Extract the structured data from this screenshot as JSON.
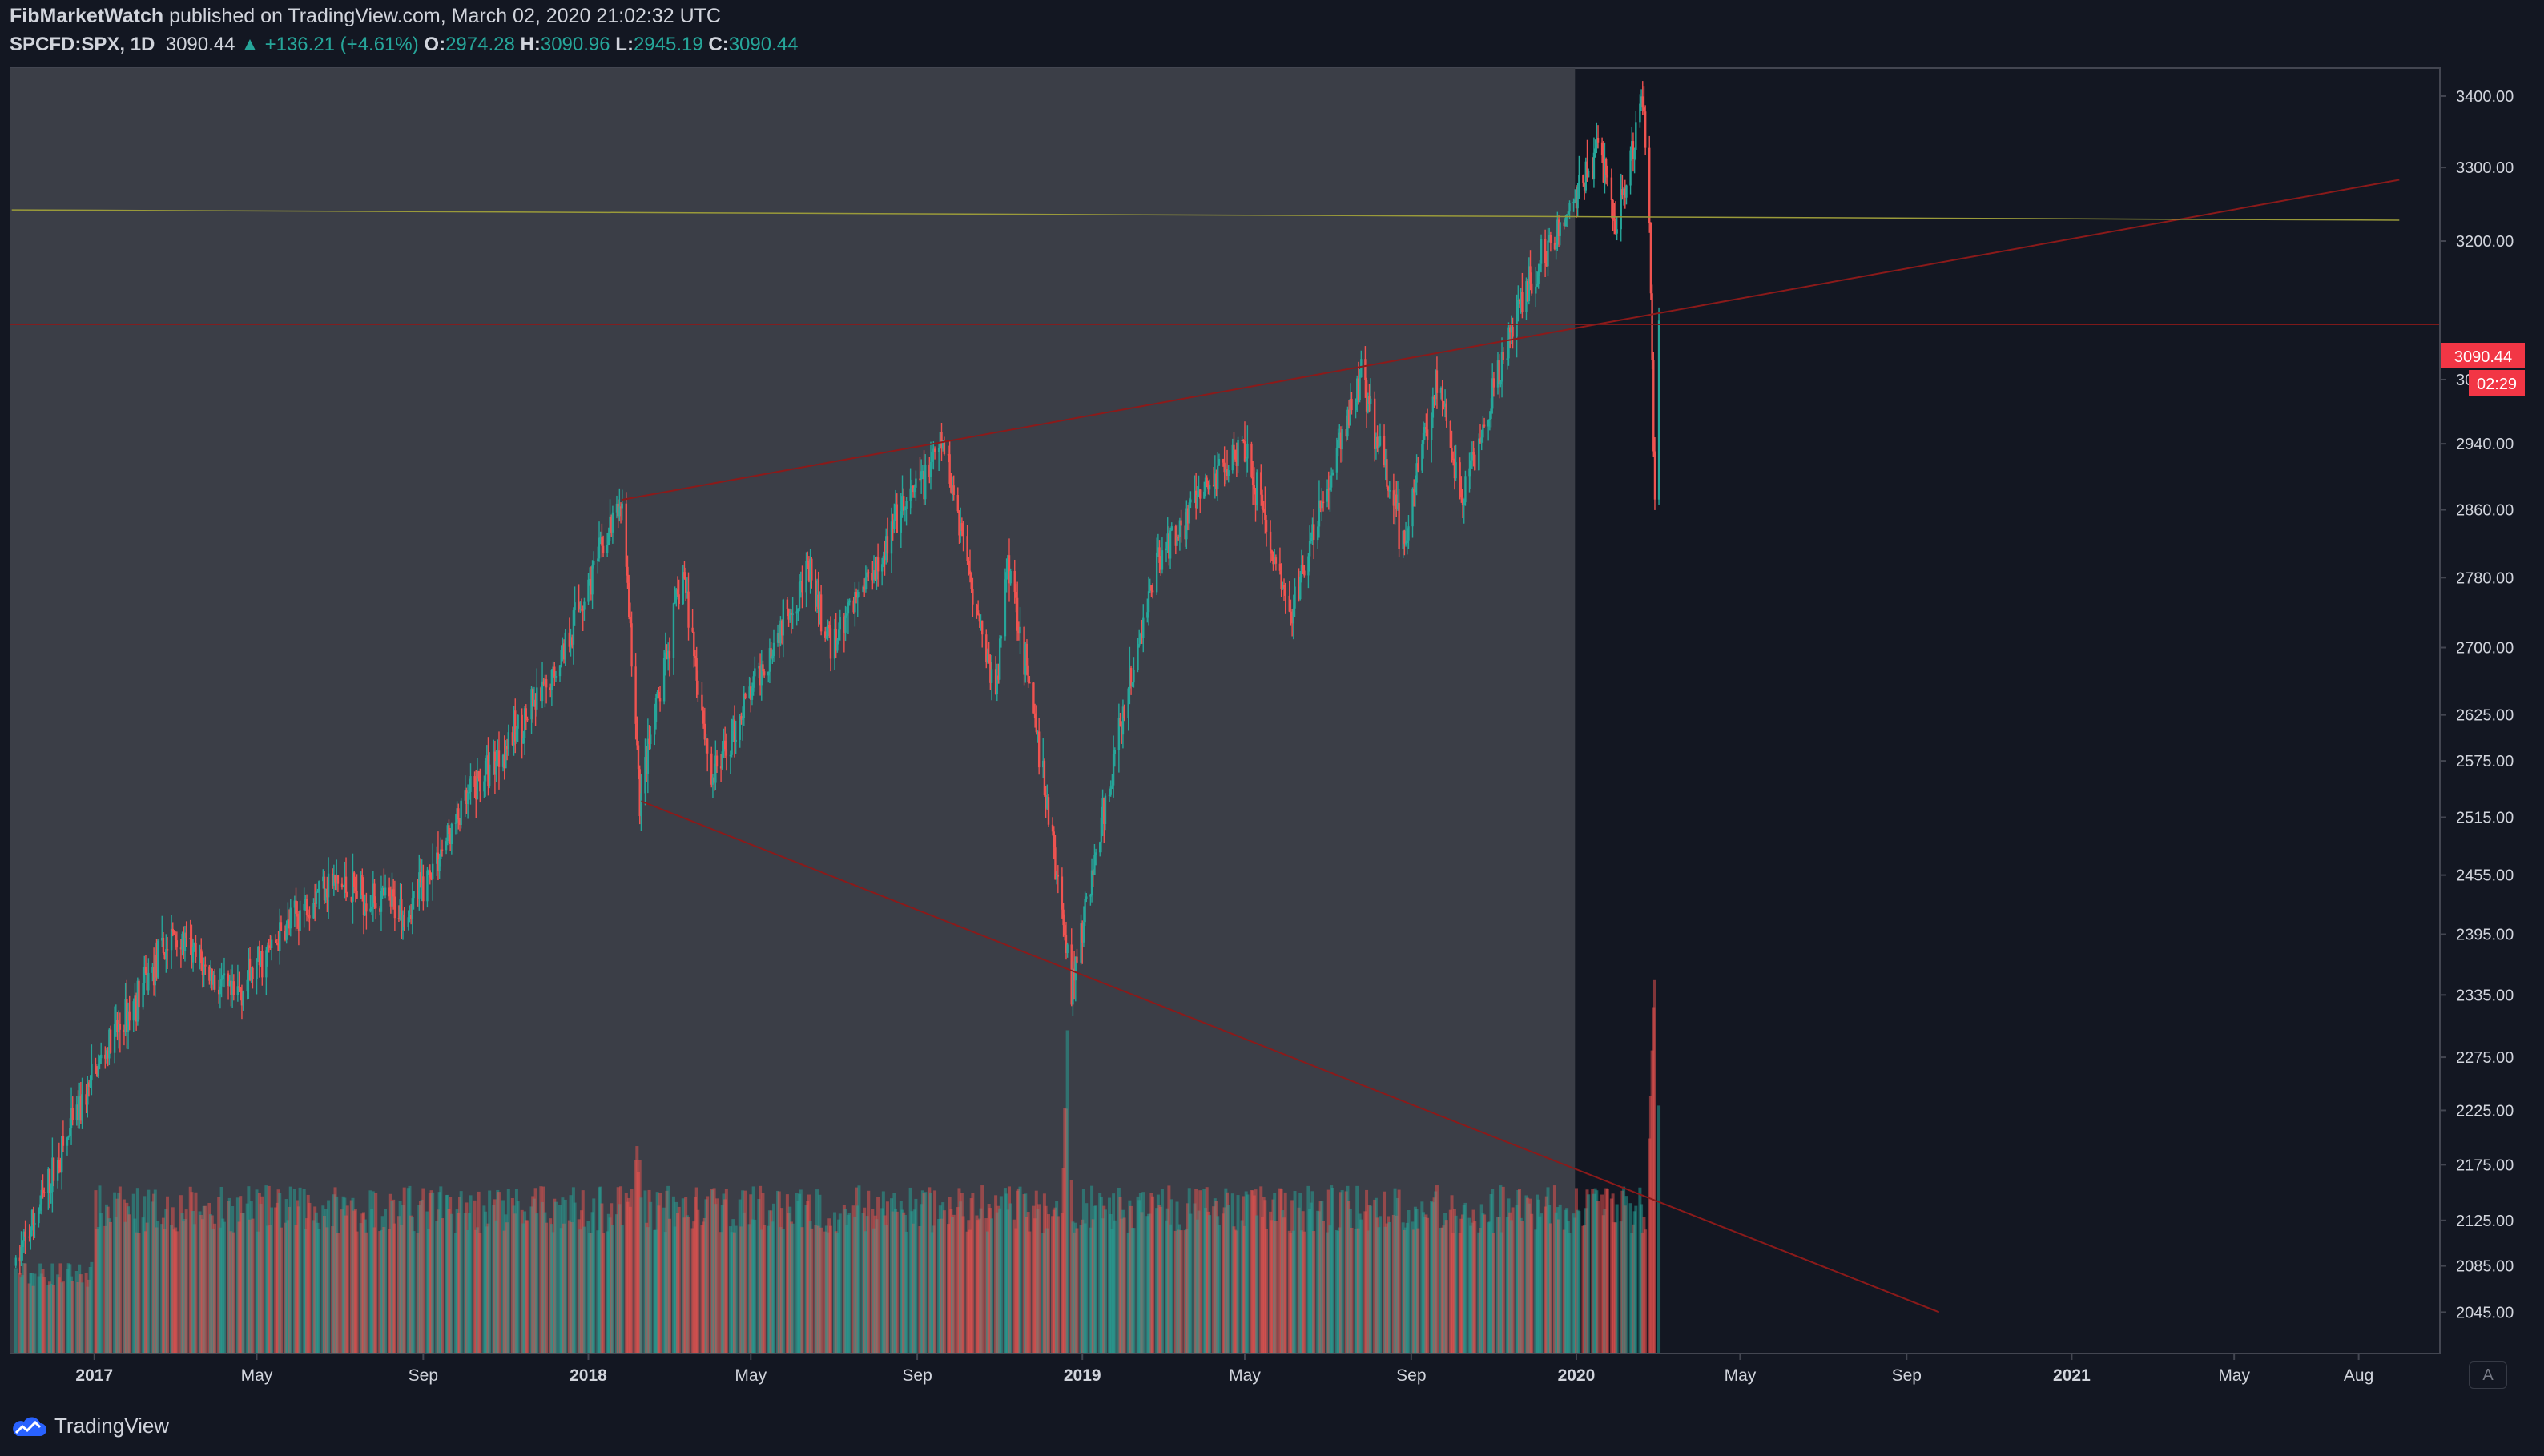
{
  "header": {
    "author": "FibMarketWatch",
    "published_text": "published on TradingView.com, March 02, 2020 21:02:32 UTC",
    "symbol": "SPCFD:SPX, 1D",
    "last": "3090.44",
    "change_arrow": "▲",
    "change": "+136.21 (+4.61%)",
    "o_label": "O:",
    "o_value": "2974.28",
    "h_label": "H:",
    "h_value": "3090.96",
    "l_label": "L:",
    "l_value": "2945.19",
    "c_label": "C:",
    "c_value": "3090.44"
  },
  "price_tag": {
    "value": "3090.44",
    "countdown": "02:29"
  },
  "footer": {
    "brand": "TradingView",
    "auto_label": "A"
  },
  "colors": {
    "background": "#131722",
    "shaded_region": "#3b3e47",
    "up": "#26a69a",
    "down": "#ef5350",
    "trendline": "#8b1a1a",
    "yellow_line": "#9a9a3a",
    "price_tag": "#f23645",
    "axis_text": "#d1d4dc"
  },
  "chart_data": {
    "type": "candlestick",
    "instrument": "SPCFD:SPX",
    "interval": "1D",
    "y_axis_ticks": [
      "3400.00",
      "3300.00",
      "3200.00",
      "3090.44",
      "3020.00",
      "2940.00",
      "2860.00",
      "2780.00",
      "2700.00",
      "2625.00",
      "2575.00",
      "2515.00",
      "2455.00",
      "2395.00",
      "2335.00",
      "2275.00",
      "2225.00",
      "2175.00",
      "2125.00",
      "2085.00",
      "2045.00"
    ],
    "x_axis_ticks": [
      "2017",
      "May",
      "Sep",
      "2018",
      "May",
      "Sep",
      "2019",
      "May",
      "Sep",
      "2020",
      "May",
      "Sep",
      "2021",
      "May",
      "Aug"
    ],
    "key_prices": [
      {
        "date": "2016-11-04",
        "price": 2085
      },
      {
        "date": "2017-01-05",
        "price": 2270
      },
      {
        "date": "2017-03-01",
        "price": 2395
      },
      {
        "date": "2017-04-13",
        "price": 2330
      },
      {
        "date": "2017-06-20",
        "price": 2450
      },
      {
        "date": "2017-08-21",
        "price": 2418
      },
      {
        "date": "2017-10-15",
        "price": 2560
      },
      {
        "date": "2017-12-01",
        "price": 2650
      },
      {
        "date": "2018-01-26",
        "price": 2872
      },
      {
        "date": "2018-02-08",
        "price": 2532
      },
      {
        "date": "2018-03-12",
        "price": 2786
      },
      {
        "date": "2018-04-02",
        "price": 2553
      },
      {
        "date": "2018-06-12",
        "price": 2790
      },
      {
        "date": "2018-06-28",
        "price": 2700
      },
      {
        "date": "2018-09-20",
        "price": 2940
      },
      {
        "date": "2018-10-29",
        "price": 2640
      },
      {
        "date": "2018-11-07",
        "price": 2810
      },
      {
        "date": "2018-12-24",
        "price": 2346
      },
      {
        "date": "2019-02-25",
        "price": 2800
      },
      {
        "date": "2019-04-30",
        "price": 2950
      },
      {
        "date": "2019-06-03",
        "price": 2730
      },
      {
        "date": "2019-07-26",
        "price": 3025
      },
      {
        "date": "2019-08-26",
        "price": 2820
      },
      {
        "date": "2019-09-19",
        "price": 3020
      },
      {
        "date": "2019-10-08",
        "price": 2870
      },
      {
        "date": "2019-11-27",
        "price": 3150
      },
      {
        "date": "2019-12-27",
        "price": 3240
      },
      {
        "date": "2020-01-17",
        "price": 3330
      },
      {
        "date": "2020-01-31",
        "price": 3225
      },
      {
        "date": "2020-02-19",
        "price": 3393
      },
      {
        "date": "2020-02-24",
        "price": 3225
      },
      {
        "date": "2020-02-28",
        "price": 2856
      },
      {
        "date": "2020-03-02",
        "price": 3090
      }
    ],
    "volume_spikes": [
      {
        "date": "2018-02-06",
        "level": "high"
      },
      {
        "date": "2018-12-21",
        "level": "very high"
      },
      {
        "date": "2020-02-28",
        "level": "very high"
      }
    ],
    "drawings": [
      {
        "type": "trendline",
        "from": {
          "date": "2018-01-26",
          "price": 2872
        },
        "to": {
          "date": "2021-08-31",
          "price": 3283
        }
      },
      {
        "type": "trendline",
        "from": {
          "date": "2018-02-09",
          "price": 2532
        },
        "to": {
          "date": "2020-09-25",
          "price": 2045
        }
      },
      {
        "type": "horizontal_line",
        "price": 3090.44
      },
      {
        "type": "near_horizontal_line",
        "from": {
          "date": "2016-11-01",
          "price": 3242
        },
        "to": {
          "date": "2021-08-31",
          "price": 3228
        }
      },
      {
        "type": "shaded_region",
        "from": "2016-11-01",
        "to": "2019-12-31"
      }
    ],
    "grid": false,
    "legend": "top-left"
  }
}
